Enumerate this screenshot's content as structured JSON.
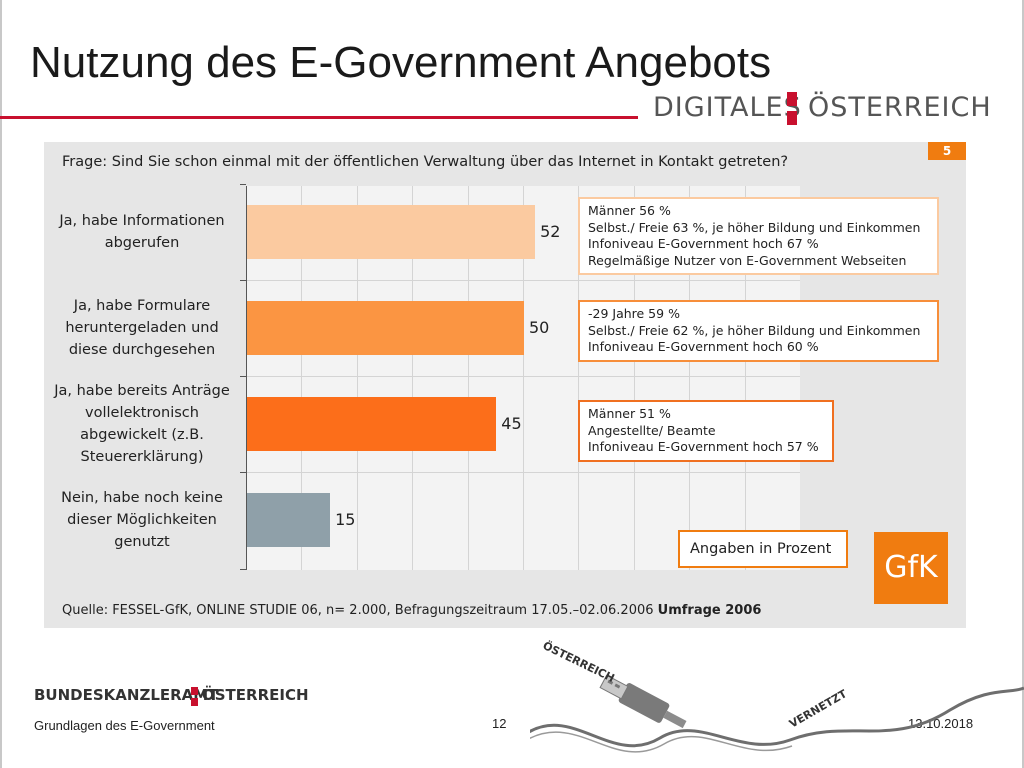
{
  "slide": {
    "title": "Nutzung des E-Government Angebots",
    "logo_top": {
      "word1": "DIGITALES",
      "word2": "ÖSTERREICH"
    },
    "badge": "5",
    "question": "Frage: Sind Sie schon einmal mit der öffentlichen Verwaltung über das Internet in Kontakt getreten?",
    "units_note": "Angaben in Prozent",
    "gfk_logo": "GfK",
    "source": "Quelle: FESSEL-GfK, ONLINE STUDIE 06, n= 2.000, Befragungszeitraum 17.05.–02.06.2006",
    "source_bold": "Umfrage 2006",
    "notes": [
      {
        "lines": [
          "Männer 56 %",
          "Selbst./ Freie 63 %, je höher Bildung und Einkommen",
          "Infoniveau E-Government hoch 67 %",
          "Regelmäßige Nutzer von E-Government Webseiten"
        ]
      },
      {
        "lines": [
          "-29 Jahre 59 %",
          "Selbst./ Freie 62 %, je höher Bildung und Einkommen",
          "Infoniveau E-Government hoch 60 %"
        ]
      },
      {
        "lines": [
          "Männer 51 %",
          "Angestellte/ Beamte",
          "Infoniveau E-Government hoch 57 %"
        ]
      }
    ],
    "footer": {
      "logo_word1": "BUNDESKANZLERAMT",
      "logo_word2": "ÖSTERREICH",
      "left": "Grundlagen des E-Government",
      "page": "12",
      "date": "13.10.2018"
    },
    "artwork": {
      "word1": "ÖSTERREICH",
      "word2": "VERNETZT",
      "icon": "usb-cable-icon"
    }
  },
  "chart_data": {
    "type": "bar",
    "orientation": "horizontal",
    "title": "",
    "xlabel": "",
    "ylabel": "",
    "xlim": [
      0,
      100
    ],
    "grid": true,
    "categories": [
      [
        "Ja, habe Informationen",
        "abgerufen"
      ],
      [
        "Ja, habe Formulare",
        "heruntergeladen und",
        "diese durchgesehen"
      ],
      [
        "Ja, habe bereits Anträge",
        "vollelektronisch",
        "abgewickelt (z.B.",
        "Steuererklärung)"
      ],
      [
        "Nein, habe noch keine",
        "dieser Möglichkeiten",
        "genutzt"
      ]
    ],
    "values": [
      52,
      50,
      45,
      15
    ],
    "colors": [
      "#fbcaa0",
      "#fb9542",
      "#fc6e1a",
      "#8fa0a9"
    ],
    "note_border_colors": [
      "#fbcaa0",
      "#f78e3a",
      "#f07020"
    ]
  }
}
